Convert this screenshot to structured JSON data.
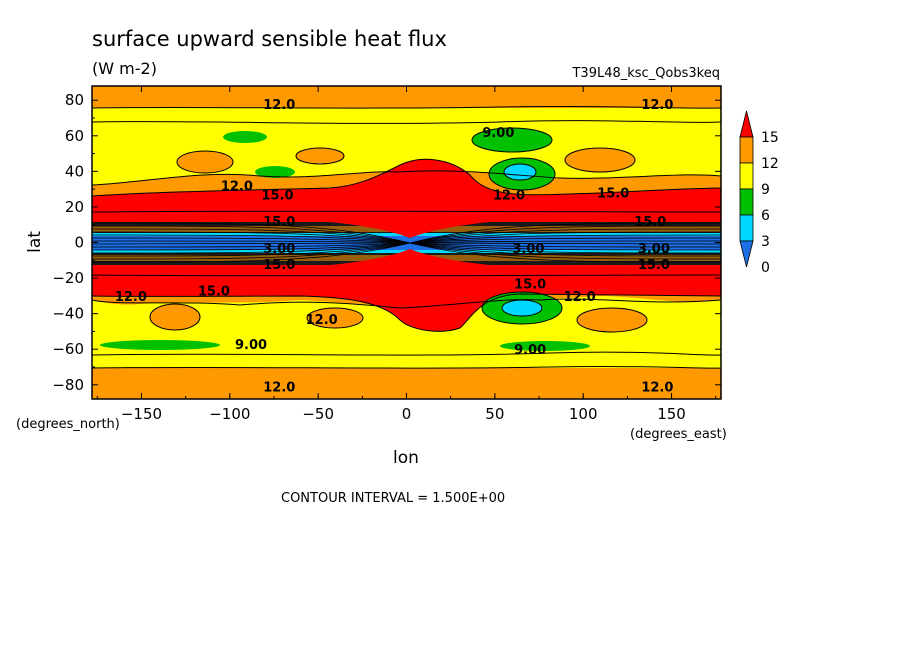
{
  "title": "surface upward sensible heat flux",
  "units": "(W m-2)",
  "run_label": "T39L48_ksc_Qobs3keq",
  "contour_interval_text": "CONTOUR INTERVAL = 1.500E+00",
  "chart_data": {
    "type": "heatmap",
    "title": "surface upward sensible heat flux",
    "subtitle": "(W m-2)",
    "xlabel": "lon",
    "ylabel": "lat",
    "x_units": "(degrees_east)",
    "y_units": "(degrees_north)",
    "xlim": [
      -178,
      178
    ],
    "ylim": [
      -88,
      88
    ],
    "xticks": [
      -150,
      -100,
      -50,
      0,
      50,
      100,
      150
    ],
    "yticks": [
      -80,
      -60,
      -40,
      -20,
      0,
      20,
      40,
      60,
      80
    ],
    "colorbar": {
      "levels": [
        0,
        3,
        6,
        9,
        12,
        15
      ],
      "labels": [
        "0",
        "3",
        "6",
        "9",
        "12",
        "15"
      ],
      "colors": [
        "#1e6fe6",
        "#00d8ff",
        "#00c000",
        "#ffff00",
        "#ff9900",
        "#ff0000"
      ]
    },
    "contour_labels": [
      {
        "text": "12.0",
        "lon": -72,
        "lat": 78
      },
      {
        "text": "12.0",
        "lon": 142,
        "lat": 78
      },
      {
        "text": "9.00",
        "lon": 52,
        "lat": 62
      },
      {
        "text": "12.0",
        "lon": -96,
        "lat": 32
      },
      {
        "text": "15.0",
        "lon": -73,
        "lat": 27
      },
      {
        "text": "12.0",
        "lon": 58,
        "lat": 27
      },
      {
        "text": "15.0",
        "lon": 117,
        "lat": 28
      },
      {
        "text": "15.0",
        "lon": 138,
        "lat": 12
      },
      {
        "text": "15.0",
        "lon": -72,
        "lat": 12
      },
      {
        "text": "3.00",
        "lon": -72,
        "lat": -3
      },
      {
        "text": "3.00",
        "lon": 69,
        "lat": -3
      },
      {
        "text": "3.00",
        "lon": 140,
        "lat": -3
      },
      {
        "text": "15.0",
        "lon": -72,
        "lat": -12
      },
      {
        "text": "15.0",
        "lon": 140,
        "lat": -12
      },
      {
        "text": "12.0",
        "lon": -156,
        "lat": -30
      },
      {
        "text": "15.0",
        "lon": -109,
        "lat": -27
      },
      {
        "text": "15.0",
        "lon": 70,
        "lat": -23
      },
      {
        "text": "12.0",
        "lon": 98,
        "lat": -30
      },
      {
        "text": "12.0",
        "lon": -48,
        "lat": -43
      },
      {
        "text": "9.00",
        "lon": -88,
        "lat": -57
      },
      {
        "text": "9.00",
        "lon": 70,
        "lat": -60
      },
      {
        "text": "12.0",
        "lon": -72,
        "lat": -81
      },
      {
        "text": "12.0",
        "lon": 142,
        "lat": -81
      }
    ]
  }
}
